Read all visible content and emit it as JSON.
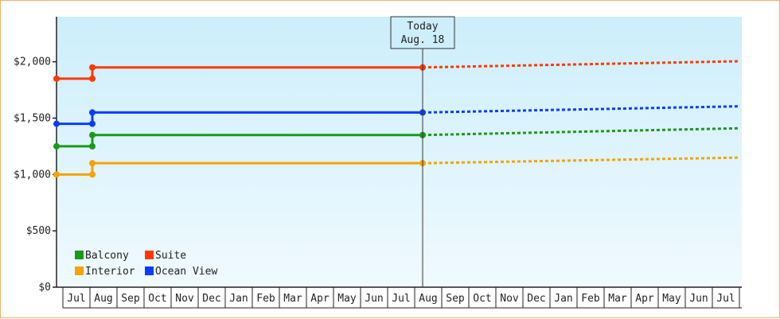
{
  "chart_data": {
    "type": "line",
    "title": "",
    "xlabel": "",
    "ylabel": "",
    "ylim": [
      0,
      2400
    ],
    "y_ticks": [
      {
        "value": 0,
        "label": "$0"
      },
      {
        "value": 500,
        "label": "$500"
      },
      {
        "value": 1000,
        "label": "$1,000"
      },
      {
        "value": 1500,
        "label": "$1,500"
      },
      {
        "value": 2000,
        "label": "$2,000"
      }
    ],
    "x_months": [
      "Jul",
      "Aug",
      "Sep",
      "Oct",
      "Nov",
      "Dec",
      "Jan",
      "Feb",
      "Mar",
      "Apr",
      "May",
      "Jun",
      "Jul",
      "Aug",
      "Sep",
      "Oct",
      "Nov",
      "Dec",
      "Jan",
      "Feb",
      "Mar",
      "Apr",
      "May",
      "Jun",
      "Jul"
    ],
    "today_label": [
      "Today",
      "Aug. 18"
    ],
    "grid": false,
    "legend_position": "bottom-left",
    "series": [
      {
        "name": "Balcony",
        "color": "#1a9a1a",
        "start_value": 1250,
        "value": 1350,
        "forecast_end": 1410
      },
      {
        "name": "Suite",
        "color": "#ff3a00",
        "start_value": 1850,
        "value": 1950,
        "forecast_end": 2005
      },
      {
        "name": "Interior",
        "color": "#f5a300",
        "start_value": 1000,
        "value": 1100,
        "forecast_end": 1150
      },
      {
        "name": "Ocean View",
        "color": "#0a3cff",
        "start_value": 1450,
        "value": 1550,
        "forecast_end": 1605
      }
    ]
  }
}
